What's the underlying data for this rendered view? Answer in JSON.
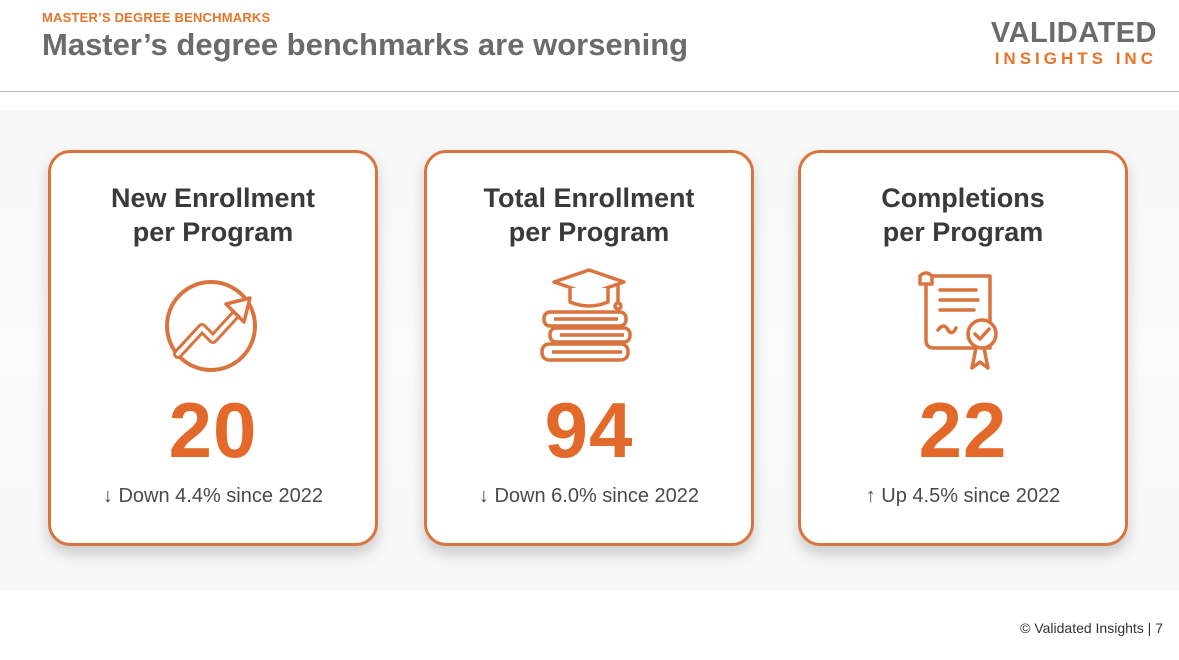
{
  "header": {
    "eyebrow": "MASTER’S DEGREE BENCHMARKS",
    "title": "Master’s degree benchmarks are worsening"
  },
  "logo": {
    "line1": "VALIDATED",
    "line2": "INSIGHTS INC",
    "accent_color": "#e8742a"
  },
  "cards": [
    {
      "title_line1": "New Enrollment",
      "title_line2": "per Program",
      "icon": "trending-up-icon",
      "value": "20",
      "change": "↓ Down 4.4% since 2022"
    },
    {
      "title_line1": "Total Enrollment",
      "title_line2": "per Program",
      "icon": "graduation-books-icon",
      "value": "94",
      "change": "↓ Down 6.0% since 2022"
    },
    {
      "title_line1": "Completions",
      "title_line2": "per Program",
      "icon": "certificate-icon",
      "value": "22",
      "change": "↑ Up 4.5% since 2022"
    }
  ],
  "footer": {
    "text": "© Validated Insights | 7"
  },
  "colors": {
    "accent": "#e2692a",
    "border": "#d9743e",
    "title_gray": "#6b6b6b"
  }
}
